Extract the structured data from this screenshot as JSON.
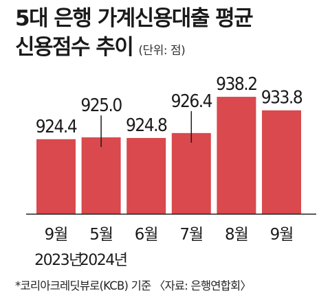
{
  "title_line1": "5대 은행 가계신용대출 평균",
  "title_line2": "신용점수 추이",
  "unit": "(단위: 점)",
  "source": "*코리아크레딧뷰로(KCB) 기준 〈자료: 은행연합회〉",
  "colors": {
    "bar": "#d9494d",
    "text": "#1a1a1a",
    "axis": "#222222"
  },
  "chart_data": {
    "type": "bar",
    "categories": [
      "9월",
      "5월",
      "6월",
      "7월",
      "8월",
      "9월"
    ],
    "year_labels": [
      "2023년",
      "2024년",
      "",
      "",
      "",
      ""
    ],
    "values": [
      924.4,
      925.0,
      924.8,
      926.4,
      938.2,
      933.8
    ],
    "value_labels": [
      "924.4",
      "925.0",
      "924.8",
      "926.4",
      "938.2",
      "933.8"
    ],
    "ylim": [
      900,
      940
    ]
  }
}
